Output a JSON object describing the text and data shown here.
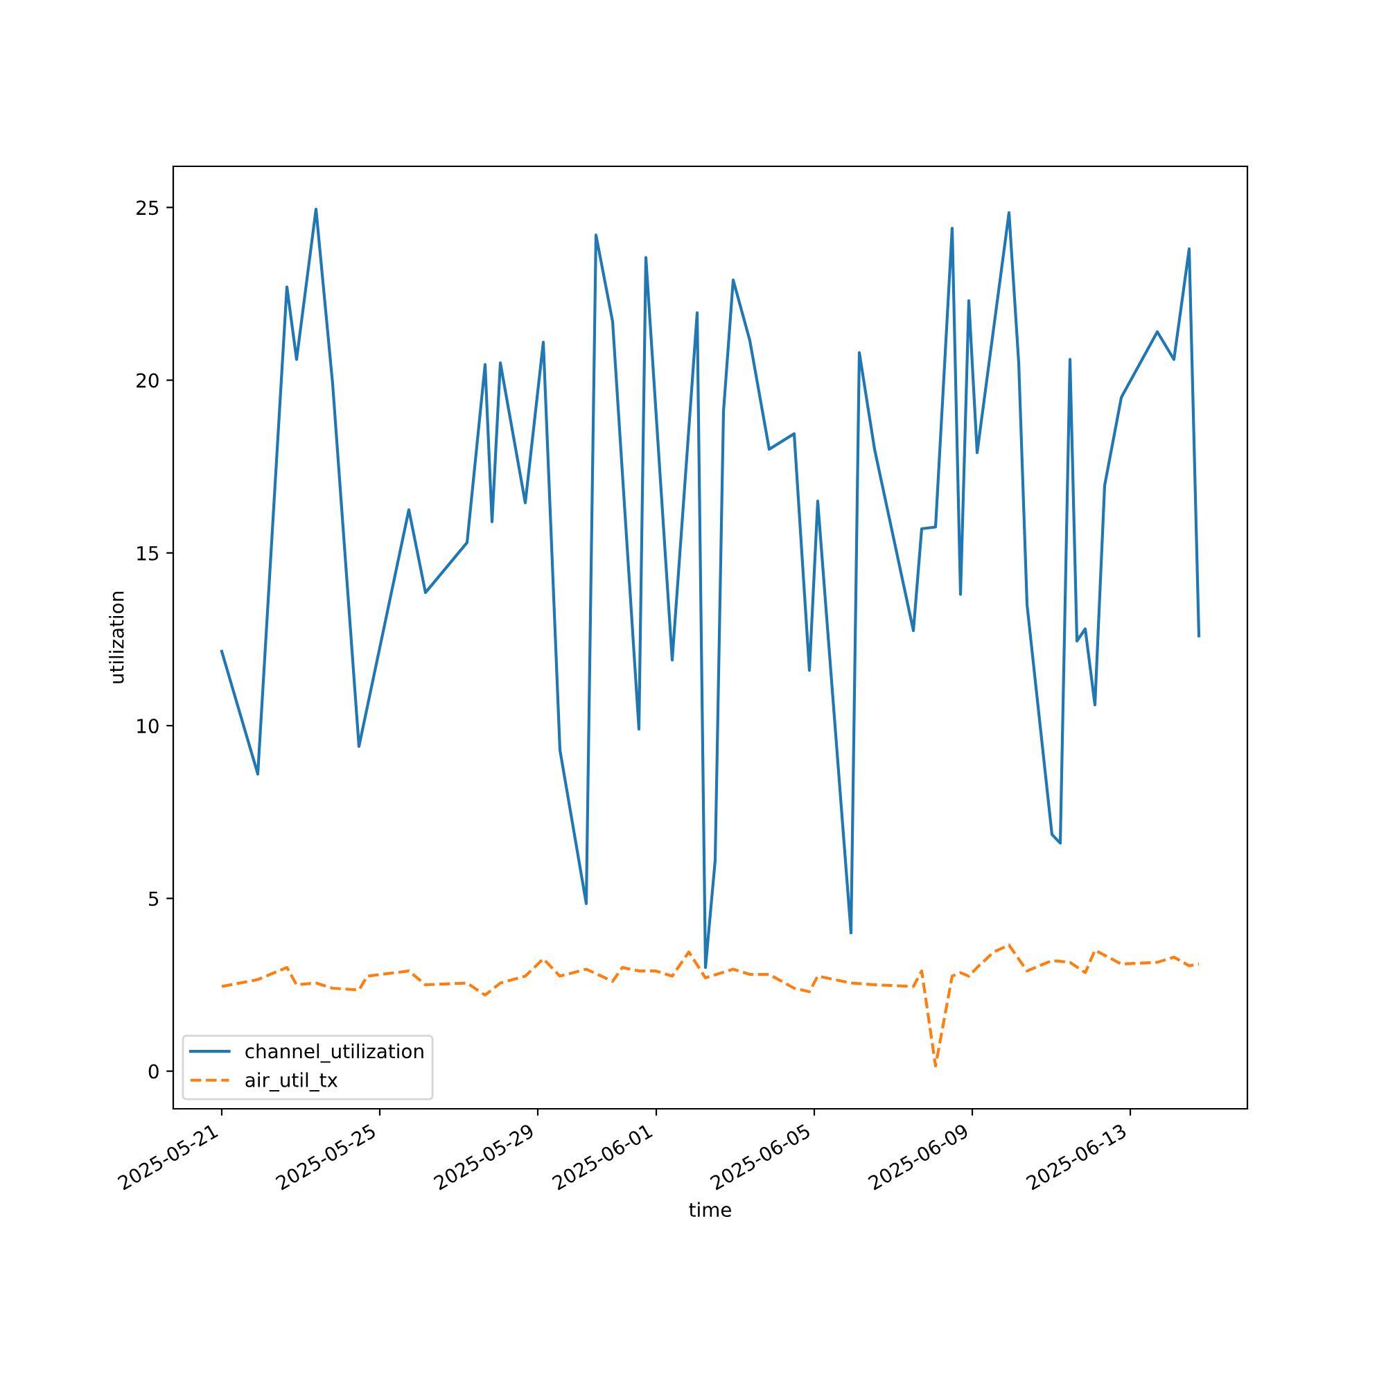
{
  "chart_data": {
    "type": "line",
    "xlabel": "time",
    "ylabel": "utilization",
    "xlim": [
      "2025-05-19T18:32",
      "2025-06-15T23:09"
    ],
    "ylim": [
      -1.09,
      26.19
    ],
    "xticks": [
      "2025-05-21",
      "2025-05-25",
      "2025-05-29",
      "2025-06-01",
      "2025-06-05",
      "2025-06-09",
      "2025-06-13"
    ],
    "yticks": [
      0,
      5,
      10,
      15,
      20,
      25
    ],
    "grid": false,
    "legend": "bottom left",
    "series": [
      {
        "name": "channel_utilization",
        "color": "#1f77b4",
        "line_style": "solid",
        "x": [
          "2025-05-21T00:00",
          "2025-05-21T21:54",
          "2025-05-22T15:35",
          "2025-05-22T21:28",
          "2025-05-23T09:16",
          "2025-05-23T19:22",
          "2025-05-24T11:22",
          "2025-05-25T17:41",
          "2025-05-26T03:47",
          "2025-05-27T05:03",
          "2025-05-27T16:00",
          "2025-05-27T20:13",
          "2025-05-28T01:16",
          "2025-05-28T16:25",
          "2025-05-29T03:22",
          "2025-05-29T13:28",
          "2025-05-30T05:28",
          "2025-05-30T11:22",
          "2025-05-30T21:28",
          "2025-05-31T13:28",
          "2025-05-31T17:41",
          "2025-06-01T09:41",
          "2025-06-02T00:51",
          "2025-06-02T05:54",
          "2025-06-02T11:47",
          "2025-06-02T16:51",
          "2025-06-02T22:44",
          "2025-06-03T08:50",
          "2025-06-03T20:38",
          "2025-06-04T11:47",
          "2025-06-04T21:03",
          "2025-06-05T02:06",
          "2025-06-05T22:19",
          "2025-06-06T03:22",
          "2025-06-06T12:38",
          "2025-06-07T12:13",
          "2025-06-07T17:16",
          "2025-06-08T01:41",
          "2025-06-08T11:47",
          "2025-06-08T16:51",
          "2025-06-08T21:54",
          "2025-06-09T02:57",
          "2025-06-09T22:19",
          "2025-06-10T04:13",
          "2025-06-10T09:16",
          "2025-06-11T00:25",
          "2025-06-11T05:28",
          "2025-06-11T11:22",
          "2025-06-11T15:35",
          "2025-06-11T20:38",
          "2025-06-12T02:31",
          "2025-06-12T08:25",
          "2025-06-12T18:32",
          "2025-06-13T16:25",
          "2025-06-14T02:31",
          "2025-06-14T11:47",
          "2025-06-14T17:41"
        ],
        "values": [
          12.15,
          8.6,
          22.7,
          20.6,
          24.95,
          19.9,
          9.4,
          16.25,
          13.85,
          15.3,
          20.45,
          15.9,
          20.5,
          16.45,
          21.1,
          9.3,
          4.85,
          24.2,
          21.7,
          9.9,
          23.55,
          11.9,
          21.95,
          3.0,
          6.1,
          19.1,
          22.9,
          21.15,
          18.0,
          18.45,
          11.6,
          16.5,
          4.0,
          20.8,
          18.0,
          12.75,
          15.7,
          15.75,
          24.4,
          13.8,
          22.3,
          17.9,
          24.85,
          20.5,
          13.5,
          6.85,
          6.6,
          20.6,
          12.45,
          12.8,
          10.6,
          16.95,
          19.5,
          21.4,
          20.6,
          23.8,
          12.6
        ]
      },
      {
        "name": "air_util_tx",
        "color": "#ff7f0e",
        "line_style": "dashed",
        "x": [
          "2025-05-21T00:00",
          "2025-05-21T21:54",
          "2025-05-22T15:35",
          "2025-05-22T21:28",
          "2025-05-23T09:16",
          "2025-05-23T19:22",
          "2025-05-24T11:22",
          "2025-05-24T16:25",
          "2025-05-25T17:41",
          "2025-05-26T03:47",
          "2025-05-27T05:03",
          "2025-05-27T16:00",
          "2025-05-28T01:16",
          "2025-05-28T16:25",
          "2025-05-29T03:22",
          "2025-05-29T13:28",
          "2025-05-30T05:28",
          "2025-05-30T21:28",
          "2025-05-31T03:22",
          "2025-05-31T13:28",
          "2025-05-31T23:34",
          "2025-06-01T09:41",
          "2025-06-01T19:47",
          "2025-06-02T05:54",
          "2025-06-02T22:44",
          "2025-06-03T08:50",
          "2025-06-03T20:38",
          "2025-06-04T11:47",
          "2025-06-04T21:03",
          "2025-06-05T02:06",
          "2025-06-05T22:19",
          "2025-06-06T12:38",
          "2025-06-07T12:13",
          "2025-06-07T17:16",
          "2025-06-08T01:41",
          "2025-06-08T11:47",
          "2025-06-08T16:51",
          "2025-06-08T21:54",
          "2025-06-09T02:57",
          "2025-06-09T13:03",
          "2025-06-09T22:19",
          "2025-06-10T09:16",
          "2025-06-11T00:25",
          "2025-06-11T11:22",
          "2025-06-11T20:38",
          "2025-06-12T02:31",
          "2025-06-12T18:32",
          "2025-06-13T16:25",
          "2025-06-14T02:31",
          "2025-06-14T11:47",
          "2025-06-14T17:41"
        ],
        "values": [
          2.45,
          2.65,
          3.0,
          2.5,
          2.55,
          2.4,
          2.35,
          2.75,
          2.9,
          2.5,
          2.55,
          2.2,
          2.55,
          2.75,
          3.25,
          2.75,
          2.95,
          2.6,
          3.0,
          2.9,
          2.9,
          2.75,
          3.45,
          2.7,
          2.95,
          2.8,
          2.8,
          2.4,
          2.3,
          2.75,
          2.55,
          2.5,
          2.45,
          2.9,
          0.15,
          2.75,
          2.85,
          2.75,
          3.0,
          3.45,
          3.65,
          2.9,
          3.2,
          3.15,
          2.85,
          3.5,
          3.1,
          3.15,
          3.3,
          3.05,
          3.1
        ]
      }
    ]
  }
}
